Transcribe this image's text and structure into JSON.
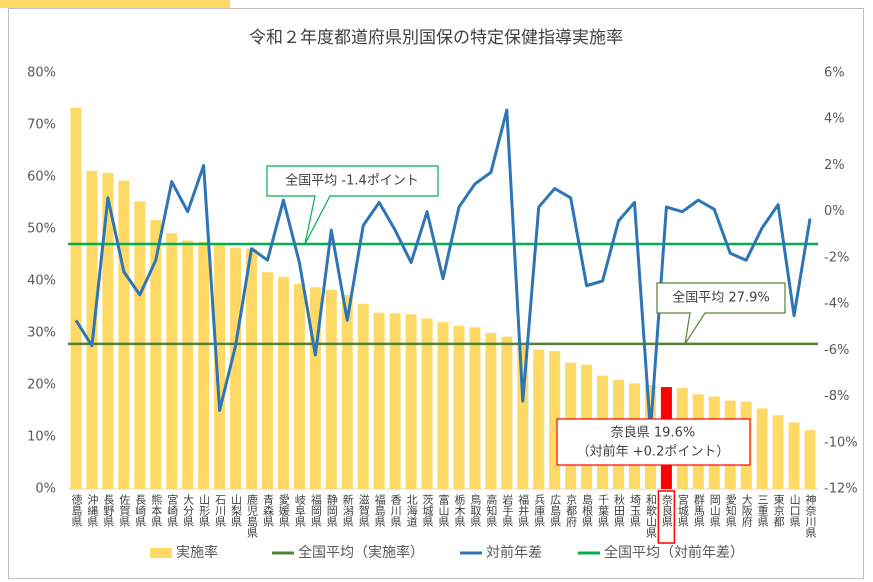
{
  "chart_data": {
    "type": "bar_line",
    "title": "令和２年度都道府県別国保の特定保健指導実施率",
    "categories": [
      "徳島県",
      "沖縄県",
      "長野県",
      "佐賀県",
      "長崎県",
      "熊本県",
      "宮崎県",
      "大分県",
      "山形県",
      "石川県",
      "山梨県",
      "鹿児島県",
      "青森県",
      "愛媛県",
      "岐阜県",
      "福岡県",
      "静岡県",
      "新潟県",
      "滋賀県",
      "福島県",
      "香川県",
      "北海道",
      "茨城県",
      "富山県",
      "栃木県",
      "鳥取県",
      "高知県",
      "岩手県",
      "福井県",
      "兵庫県",
      "広島県",
      "京都府",
      "島根県",
      "千葉県",
      "秋田県",
      "埼玉県",
      "和歌山県",
      "奈良県",
      "宮城県",
      "群馬県",
      "岡山県",
      "愛知県",
      "大阪府",
      "三重県",
      "東京都",
      "山口県",
      "神奈川県"
    ],
    "series": [
      {
        "name": "実施率",
        "type": "bar",
        "axis": "y",
        "color": "#ffd966",
        "values": [
          73.3,
          61.2,
          60.8,
          59.3,
          55.3,
          51.7,
          49.2,
          47.8,
          47.5,
          46.9,
          46.4,
          46.2,
          41.7,
          40.8,
          39.4,
          38.8,
          38.3,
          37.3,
          35.6,
          33.9,
          33.8,
          33.6,
          32.8,
          32.1,
          31.4,
          31.1,
          30.0,
          29.3,
          28.0,
          26.8,
          26.5,
          24.3,
          23.9,
          21.8,
          21.0,
          20.3,
          20.0,
          19.6,
          19.4,
          18.2,
          17.8,
          17.0,
          16.8,
          15.5,
          14.2,
          12.8,
          11.3
        ]
      },
      {
        "name": "対前年差",
        "type": "line",
        "axis": "y2",
        "color": "#2e75b6",
        "values": [
          -4.7,
          -5.8,
          0.6,
          -2.6,
          -3.6,
          -2.1,
          1.3,
          0.0,
          2.0,
          -8.6,
          -5.8,
          -1.6,
          -2.1,
          0.5,
          -2.2,
          -6.2,
          -0.8,
          -4.7,
          -0.6,
          0.4,
          -0.8,
          -2.2,
          0.0,
          -2.9,
          0.2,
          1.2,
          1.7,
          4.4,
          -8.2,
          0.2,
          1.0,
          0.6,
          -3.2,
          -3.0,
          -0.4,
          0.4,
          -9.5,
          0.2,
          0.0,
          0.5,
          0.1,
          -1.8,
          -2.1,
          -0.7,
          0.3,
          -4.5,
          -0.3
        ]
      }
    ],
    "reference_lines": [
      {
        "name": "全国平均（実施率）",
        "value": 27.9,
        "axis": "y",
        "color": "#548235"
      },
      {
        "name": "全国平均（対前年差）",
        "value": -1.4,
        "axis": "y2",
        "color": "#00b050"
      }
    ],
    "highlight_category": "奈良県",
    "highlight_color": "#ff0000",
    "ylim": [
      0,
      80
    ],
    "yticks": [
      {
        "value": 0,
        "label": "0%"
      },
      {
        "value": 10,
        "label": "10%"
      },
      {
        "value": 20,
        "label": "20%"
      },
      {
        "value": 30,
        "label": "30%"
      },
      {
        "value": 40,
        "label": "40%"
      },
      {
        "value": 50,
        "label": "50%"
      },
      {
        "value": 60,
        "label": "60%"
      },
      {
        "value": 70,
        "label": "70%"
      },
      {
        "value": 80,
        "label": "80%"
      }
    ],
    "y2lim": [
      -12,
      6
    ],
    "y2ticks": [
      {
        "value": -12,
        "label": "-12%"
      },
      {
        "value": -10,
        "label": "-10%"
      },
      {
        "value": -8,
        "label": "-8%"
      },
      {
        "value": -6,
        "label": "-6%"
      },
      {
        "value": -4,
        "label": "-4%"
      },
      {
        "value": -2,
        "label": "-2%"
      },
      {
        "value": 0,
        "label": "0%"
      },
      {
        "value": 2,
        "label": "2%"
      },
      {
        "value": 4,
        "label": "4%"
      },
      {
        "value": 6,
        "label": "6%"
      }
    ],
    "annotations": [
      "全国平均 -1.4ポイント",
      "全国平均 27.9%",
      "奈良県 19.6%",
      "（対前年 +0.2ポイント）"
    ],
    "legend": "bottom"
  }
}
